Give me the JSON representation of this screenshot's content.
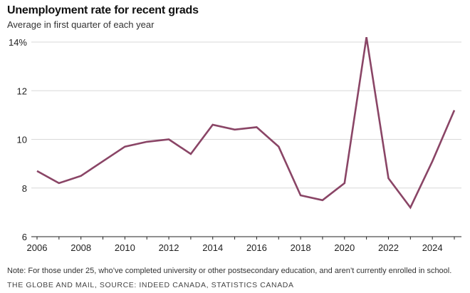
{
  "chart_data": {
    "type": "line",
    "title": "Unemployment rate for recent grads",
    "subtitle": "Average in first quarter of each year",
    "xlabel": "",
    "ylabel": "",
    "xlim": [
      2006,
      2025
    ],
    "ylim": [
      6,
      14
    ],
    "y_ticks": [
      {
        "value": 6,
        "label": "6"
      },
      {
        "value": 8,
        "label": "8"
      },
      {
        "value": 10,
        "label": "10"
      },
      {
        "value": 12,
        "label": "12"
      },
      {
        "value": 14,
        "label": "14%"
      }
    ],
    "x_ticks": [
      {
        "value": 2006,
        "label": "2006"
      },
      {
        "value": 2008,
        "label": "2008"
      },
      {
        "value": 2010,
        "label": "2010"
      },
      {
        "value": 2012,
        "label": "2012"
      },
      {
        "value": 2014,
        "label": "2014"
      },
      {
        "value": 2016,
        "label": "2016"
      },
      {
        "value": 2018,
        "label": "2018"
      },
      {
        "value": 2020,
        "label": "2020"
      },
      {
        "value": 2022,
        "label": "2022"
      },
      {
        "value": 2024,
        "label": "2024"
      }
    ],
    "grid": true,
    "series": [
      {
        "color": "#8a4566",
        "x": [
          2006,
          2007,
          2008,
          2009,
          2010,
          2011,
          2012,
          2013,
          2014,
          2015,
          2016,
          2017,
          2018,
          2019,
          2020,
          2021,
          2022,
          2023,
          2024,
          2025
        ],
        "values": [
          8.7,
          8.2,
          8.5,
          9.1,
          9.7,
          9.9,
          10.0,
          9.4,
          10.6,
          10.4,
          10.5,
          9.7,
          7.7,
          7.5,
          8.2,
          14.2,
          8.4,
          7.2,
          9.1,
          11.2
        ]
      }
    ],
    "note": "Note: For those under 25, who’ve completed university or other postsecondary education, and aren’t currently enrolled in school.",
    "source": "THE GLOBE AND MAIL, SOURCE: INDEED CANADA, STATISTICS CANADA"
  }
}
